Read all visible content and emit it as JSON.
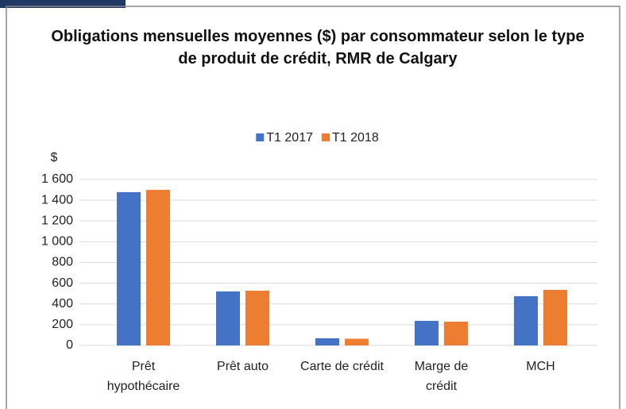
{
  "chart_data": {
    "type": "bar",
    "title": "Obligations mensuelles moyennes ($) par consommateur selon le type de produit de crédit, RMR de Calgary",
    "y_label": "$",
    "categories": [
      "Prêt hypothécaire",
      "Prêt auto",
      "Carte de crédit",
      "Marge de crédit",
      "MCH"
    ],
    "series": [
      {
        "name": "T1 2017",
        "color": "#4472c4",
        "values": [
          1478,
          521,
          69,
          237,
          475
        ]
      },
      {
        "name": "T1 2018",
        "color": "#ed7d31",
        "values": [
          1500,
          528,
          65,
          230,
          536
        ]
      }
    ],
    "ylim": [
      0,
      1600
    ],
    "yticks": [
      0,
      200,
      400,
      600,
      800,
      {
        "value": 1000,
        "label": "1 000"
      },
      {
        "value": 1200,
        "label": "1 200"
      },
      {
        "value": 1400,
        "label": "1 400"
      },
      {
        "value": 1600,
        "label": "1 600"
      }
    ],
    "grid": true,
    "legend": "top"
  }
}
